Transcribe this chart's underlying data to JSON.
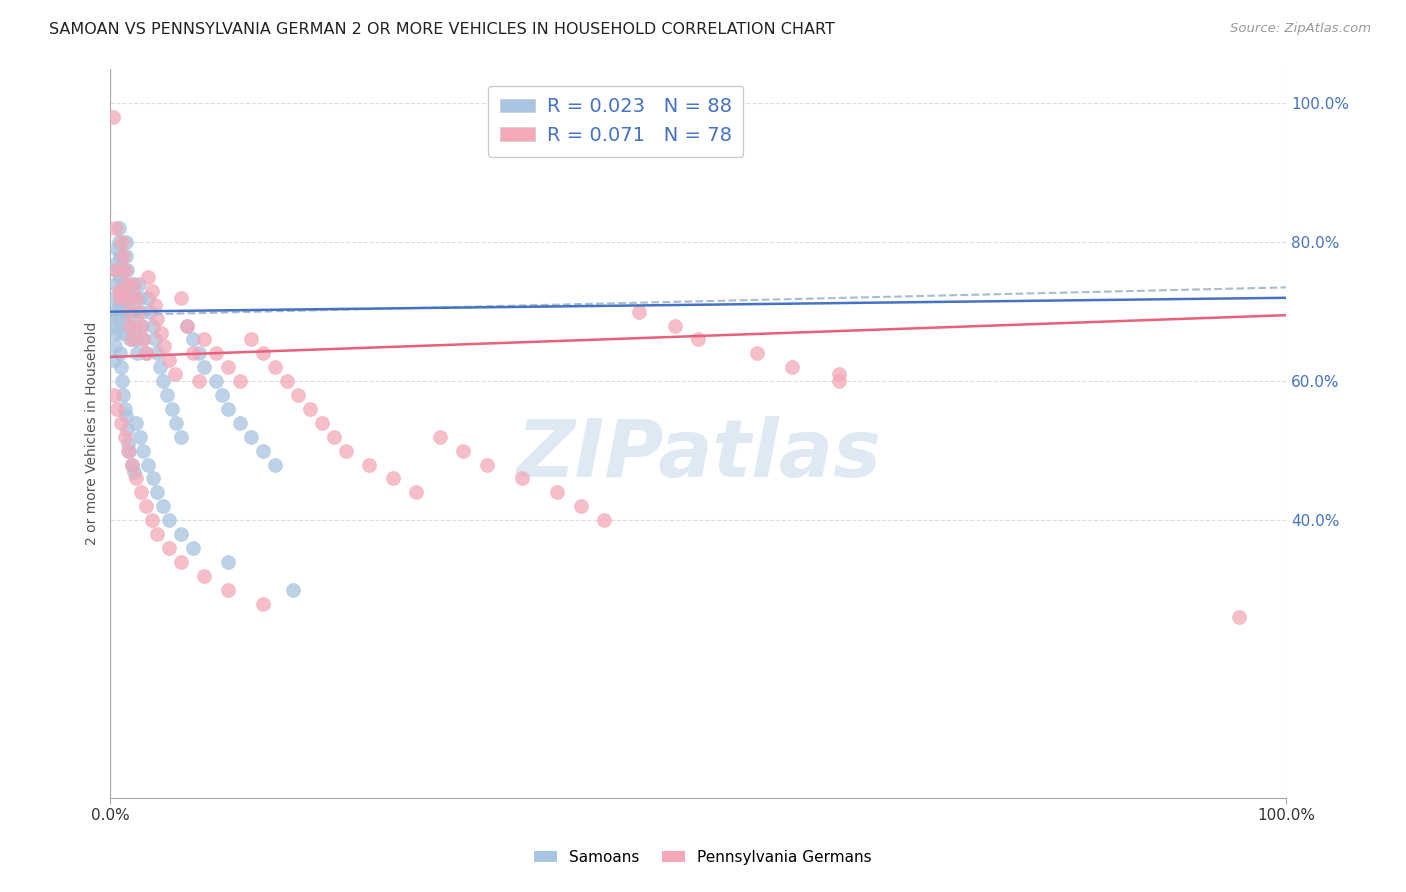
{
  "title": "SAMOAN VS PENNSYLVANIA GERMAN 2 OR MORE VEHICLES IN HOUSEHOLD CORRELATION CHART",
  "source": "Source: ZipAtlas.com",
  "ylabel": "2 or more Vehicles in Household",
  "samoans_color": "#a8c4e0",
  "pa_german_color": "#f4a8b8",
  "samoans_line_color": "#4472c4",
  "pa_german_line_color": "#e8607a",
  "dashed_line_color": "#aabbcc",
  "samoans_label": "Samoans",
  "pa_german_label": "Pennsylvania Germans",
  "watermark": "ZIPatlas",
  "legend_text_color": "#4472c4",
  "right_tick_color": "#4472c4",
  "background_color": "#ffffff",
  "grid_color": "#dddddd",
  "ylim_min": 0.0,
  "ylim_max": 1.05,
  "xlim_min": 0.0,
  "xlim_max": 1.0,
  "right_yticks": [
    0.4,
    0.6,
    0.8,
    1.0
  ],
  "right_ytick_labels": [
    "40.0%",
    "60.0%",
    "80.0%",
    "100.0%"
  ],
  "samoans_x": [
    0.002,
    0.003,
    0.004,
    0.005,
    0.005,
    0.006,
    0.006,
    0.007,
    0.007,
    0.008,
    0.008,
    0.009,
    0.009,
    0.01,
    0.01,
    0.011,
    0.011,
    0.012,
    0.012,
    0.013,
    0.013,
    0.014,
    0.015,
    0.015,
    0.016,
    0.017,
    0.018,
    0.019,
    0.02,
    0.021,
    0.022,
    0.023,
    0.024,
    0.025,
    0.026,
    0.027,
    0.028,
    0.03,
    0.032,
    0.034,
    0.036,
    0.038,
    0.04,
    0.042,
    0.045,
    0.048,
    0.052,
    0.056,
    0.06,
    0.065,
    0.07,
    0.075,
    0.08,
    0.09,
    0.095,
    0.1,
    0.11,
    0.12,
    0.13,
    0.14,
    0.003,
    0.004,
    0.005,
    0.006,
    0.007,
    0.008,
    0.009,
    0.01,
    0.011,
    0.012,
    0.013,
    0.014,
    0.015,
    0.016,
    0.018,
    0.02,
    0.022,
    0.025,
    0.028,
    0.032,
    0.036,
    0.04,
    0.045,
    0.05,
    0.06,
    0.07,
    0.1,
    0.155
  ],
  "samoans_y": [
    0.68,
    0.7,
    0.72,
    0.74,
    0.76,
    0.77,
    0.79,
    0.8,
    0.82,
    0.78,
    0.75,
    0.73,
    0.71,
    0.69,
    0.67,
    0.76,
    0.74,
    0.72,
    0.7,
    0.8,
    0.78,
    0.76,
    0.73,
    0.7,
    0.68,
    0.66,
    0.74,
    0.72,
    0.7,
    0.68,
    0.66,
    0.64,
    0.74,
    0.72,
    0.7,
    0.68,
    0.66,
    0.64,
    0.72,
    0.7,
    0.68,
    0.66,
    0.64,
    0.62,
    0.6,
    0.58,
    0.56,
    0.54,
    0.52,
    0.68,
    0.66,
    0.64,
    0.62,
    0.6,
    0.58,
    0.56,
    0.54,
    0.52,
    0.5,
    0.48,
    0.63,
    0.65,
    0.67,
    0.69,
    0.71,
    0.64,
    0.62,
    0.6,
    0.58,
    0.56,
    0.55,
    0.53,
    0.51,
    0.5,
    0.48,
    0.47,
    0.54,
    0.52,
    0.5,
    0.48,
    0.46,
    0.44,
    0.42,
    0.4,
    0.38,
    0.36,
    0.34,
    0.3
  ],
  "pa_german_x": [
    0.002,
    0.004,
    0.005,
    0.007,
    0.008,
    0.01,
    0.011,
    0.012,
    0.013,
    0.015,
    0.016,
    0.017,
    0.018,
    0.02,
    0.022,
    0.024,
    0.026,
    0.028,
    0.03,
    0.032,
    0.035,
    0.038,
    0.04,
    0.043,
    0.046,
    0.05,
    0.055,
    0.06,
    0.065,
    0.07,
    0.075,
    0.08,
    0.09,
    0.1,
    0.11,
    0.12,
    0.13,
    0.14,
    0.15,
    0.16,
    0.17,
    0.18,
    0.19,
    0.2,
    0.22,
    0.24,
    0.26,
    0.28,
    0.3,
    0.32,
    0.35,
    0.38,
    0.4,
    0.42,
    0.45,
    0.48,
    0.5,
    0.55,
    0.58,
    0.62,
    0.003,
    0.006,
    0.009,
    0.012,
    0.015,
    0.018,
    0.022,
    0.026,
    0.03,
    0.035,
    0.04,
    0.05,
    0.06,
    0.08,
    0.1,
    0.13,
    0.62,
    0.96
  ],
  "pa_german_y": [
    0.98,
    0.82,
    0.76,
    0.73,
    0.72,
    0.8,
    0.78,
    0.76,
    0.74,
    0.72,
    0.7,
    0.68,
    0.66,
    0.74,
    0.72,
    0.7,
    0.68,
    0.66,
    0.64,
    0.75,
    0.73,
    0.71,
    0.69,
    0.67,
    0.65,
    0.63,
    0.61,
    0.72,
    0.68,
    0.64,
    0.6,
    0.66,
    0.64,
    0.62,
    0.6,
    0.66,
    0.64,
    0.62,
    0.6,
    0.58,
    0.56,
    0.54,
    0.52,
    0.5,
    0.48,
    0.46,
    0.44,
    0.52,
    0.5,
    0.48,
    0.46,
    0.44,
    0.42,
    0.4,
    0.7,
    0.68,
    0.66,
    0.64,
    0.62,
    0.6,
    0.58,
    0.56,
    0.54,
    0.52,
    0.5,
    0.48,
    0.46,
    0.44,
    0.42,
    0.4,
    0.38,
    0.36,
    0.34,
    0.32,
    0.3,
    0.28,
    0.61,
    0.26
  ]
}
